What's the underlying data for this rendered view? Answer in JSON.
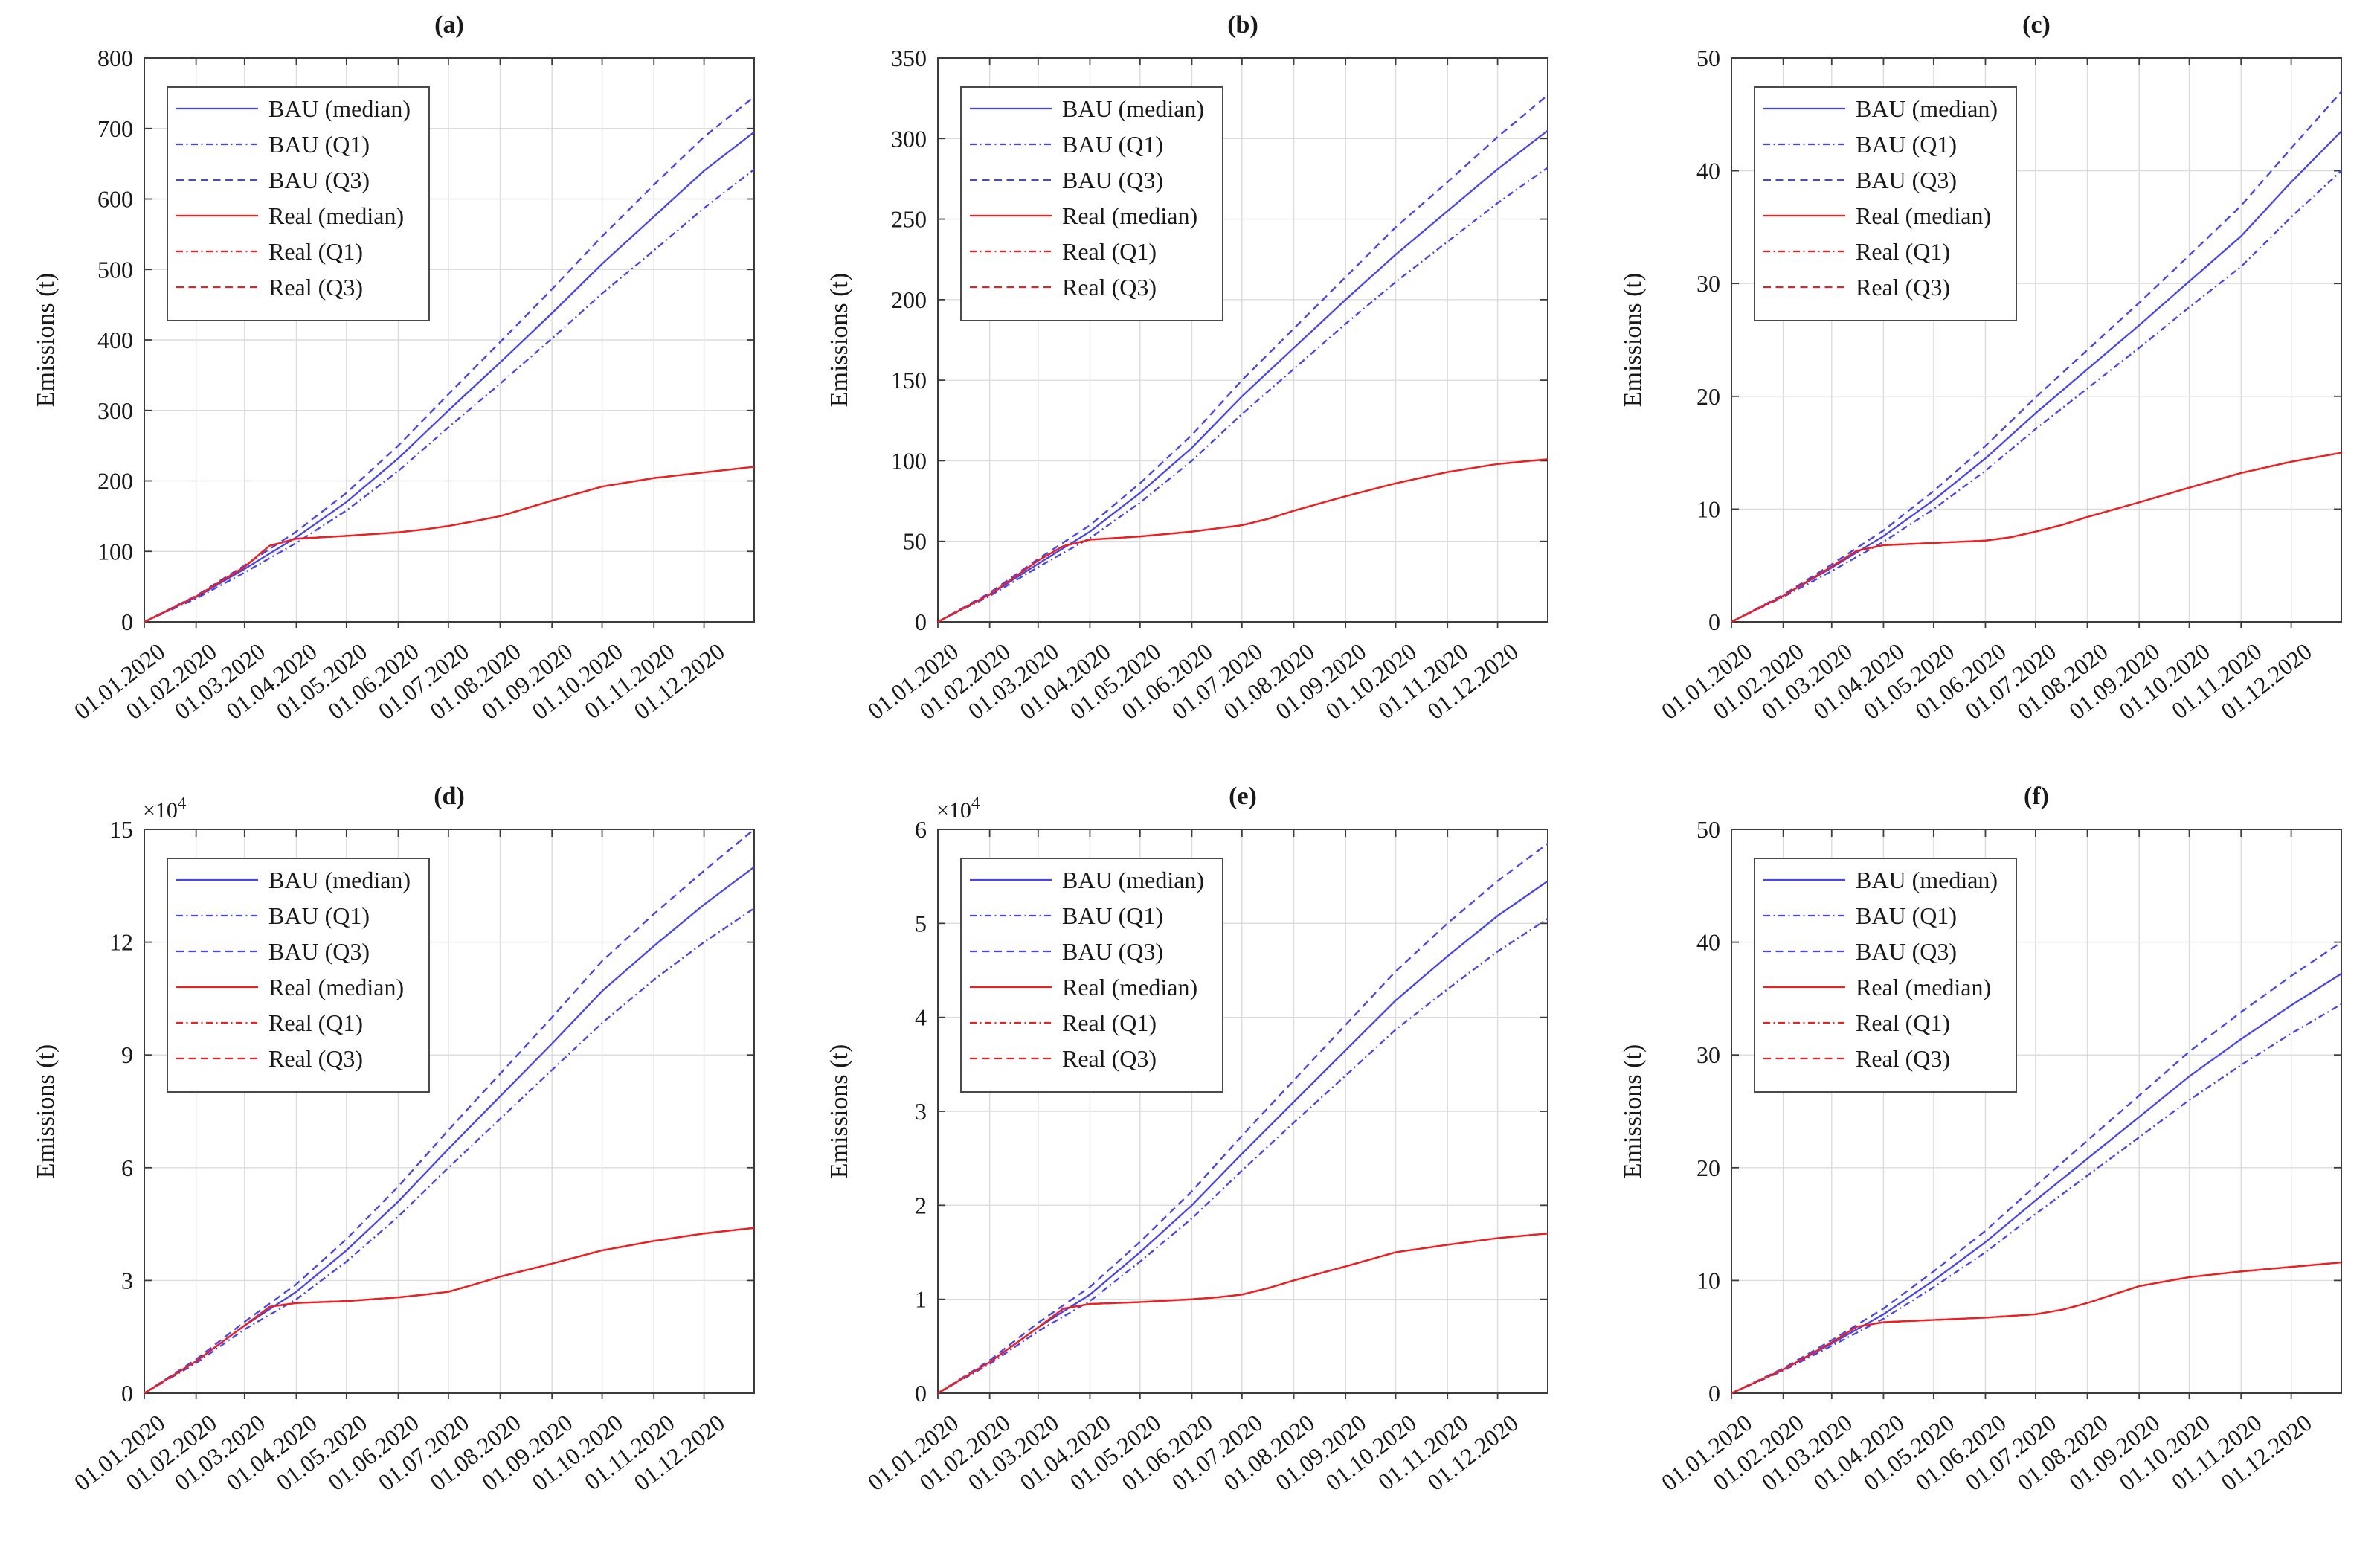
{
  "figure": {
    "background": "#ffffff"
  },
  "colors": {
    "bau": "#4545f0",
    "real": "#ed1f1f",
    "grid": "#dcdcdc",
    "axis": "#3c3c3c",
    "text": "#191919",
    "legend_border": "#4a4a4a",
    "legend_fill": "#ffffff"
  },
  "chart_data": {
    "type": "line",
    "shared": {
      "ylabel": "Emissions (t)",
      "xlabel": "",
      "grid": true,
      "legend_position": "upper-left",
      "x_tick_labels": [
        "01.01.2020",
        "01.02.2020",
        "01.03.2020",
        "01.04.2020",
        "01.05.2020",
        "01.06.2020",
        "01.07.2020",
        "01.08.2020",
        "01.09.2020",
        "01.10.2020",
        "01.11.2020",
        "01.12.2020"
      ],
      "x_tick_days": [
        0,
        31,
        60,
        91,
        121,
        152,
        182,
        213,
        244,
        274,
        305,
        335
      ],
      "xlim": [
        0,
        365
      ],
      "legend": [
        {
          "label": "BAU (median)",
          "color_key": "bau",
          "style": "solid",
          "series_key": "bau_median"
        },
        {
          "label": "BAU (Q1)",
          "color_key": "bau",
          "style": "dashdot",
          "series_key": "bau_q1"
        },
        {
          "label": "BAU (Q3)",
          "color_key": "bau",
          "style": "dashed",
          "series_key": "bau_q3"
        },
        {
          "label": "Real (median)",
          "color_key": "real",
          "style": "solid",
          "series_key": "real_median"
        },
        {
          "label": "Real (Q1)",
          "color_key": "real",
          "style": "dashdot",
          "series_key": "real_q1"
        },
        {
          "label": "Real (Q3)",
          "color_key": "real",
          "style": "dashed",
          "series_key": "real_q3"
        }
      ],
      "bau_x_days": [
        0,
        31,
        60,
        91,
        121,
        152,
        182,
        213,
        244,
        274,
        305,
        335,
        365
      ],
      "real_x_days": [
        0,
        31,
        60,
        75,
        91,
        121,
        152,
        167,
        182,
        198,
        213,
        244,
        274,
        305,
        335,
        365
      ]
    },
    "charts": [
      {
        "id": "a",
        "title": "(a)",
        "ylim": [
          0,
          800
        ],
        "yticks": [
          0,
          100,
          200,
          300,
          400,
          500,
          600,
          700,
          800
        ],
        "y_exponent": null,
        "series": {
          "bau_median": [
            0,
            35,
            75,
            120,
            170,
            232,
            300,
            368,
            438,
            508,
            575,
            640,
            695
          ],
          "bau_q1": [
            0,
            33,
            70,
            112,
            158,
            214,
            276,
            338,
            402,
            466,
            527,
            587,
            642
          ],
          "bau_q3": [
            0,
            37,
            80,
            128,
            183,
            250,
            323,
            397,
            472,
            547,
            620,
            688,
            745
          ],
          "real_median": [
            0,
            36,
            78,
            108,
            118,
            122,
            127,
            131,
            136,
            143,
            150,
            172,
            192,
            204,
            212,
            220
          ],
          "real_q1": [
            0,
            36,
            78,
            108,
            118,
            122,
            127,
            131,
            136,
            143,
            150,
            172,
            192,
            204,
            212,
            220
          ],
          "real_q3": [
            0,
            36,
            78,
            108,
            118,
            122,
            127,
            131,
            136,
            143,
            150,
            172,
            192,
            204,
            212,
            220
          ]
        }
      },
      {
        "id": "b",
        "title": "(b)",
        "ylim": [
          0,
          350
        ],
        "yticks": [
          0,
          50,
          100,
          150,
          200,
          250,
          300,
          350
        ],
        "y_exponent": null,
        "series": {
          "bau_median": [
            0,
            17,
            36,
            56,
            80,
            108,
            140,
            170,
            200,
            228,
            255,
            281,
            305
          ],
          "bau_q1": [
            0,
            16,
            34,
            52,
            74,
            100,
            129,
            157,
            185,
            211,
            236,
            260,
            282
          ],
          "bau_q3": [
            0,
            18,
            39,
            60,
            86,
            116,
            150,
            182,
            214,
            245,
            273,
            301,
            327
          ],
          "real_median": [
            0,
            17,
            38,
            47,
            51,
            53,
            56,
            58,
            60,
            64,
            69,
            78,
            86,
            93,
            98,
            101
          ],
          "real_q1": [
            0,
            17,
            38,
            47,
            51,
            53,
            56,
            58,
            60,
            64,
            69,
            78,
            86,
            93,
            98,
            101
          ],
          "real_q3": [
            0,
            17,
            38,
            47,
            51,
            53,
            56,
            58,
            60,
            64,
            69,
            78,
            86,
            93,
            98,
            101
          ]
        }
      },
      {
        "id": "c",
        "title": "(c)",
        "ylim": [
          0,
          50
        ],
        "yticks": [
          0,
          10,
          20,
          30,
          40,
          50
        ],
        "y_exponent": null,
        "series": {
          "bau_median": [
            0,
            2.3,
            4.8,
            7.6,
            10.8,
            14.5,
            18.5,
            22.4,
            26.3,
            30.2,
            34.2,
            39.0,
            43.5
          ],
          "bau_q1": [
            0,
            2.2,
            4.5,
            7.1,
            10.0,
            13.4,
            17.1,
            20.7,
            24.3,
            27.9,
            31.5,
            35.9,
            40.0
          ],
          "bau_q3": [
            0,
            2.4,
            5.1,
            8.1,
            11.6,
            15.6,
            19.9,
            24.1,
            28.3,
            32.5,
            36.9,
            42.0,
            47.0
          ],
          "real_median": [
            0,
            2.3,
            4.9,
            6.3,
            6.8,
            7.0,
            7.2,
            7.5,
            8.0,
            8.6,
            9.3,
            10.6,
            11.9,
            13.2,
            14.2,
            15.0
          ],
          "real_q1": [
            0,
            2.3,
            4.9,
            6.3,
            6.8,
            7.0,
            7.2,
            7.5,
            8.0,
            8.6,
            9.3,
            10.6,
            11.9,
            13.2,
            14.2,
            15.0
          ],
          "real_q3": [
            0,
            2.3,
            4.9,
            6.3,
            6.8,
            7.0,
            7.2,
            7.5,
            8.0,
            8.6,
            9.3,
            10.6,
            11.9,
            13.2,
            14.2,
            15.0
          ]
        }
      },
      {
        "id": "d",
        "title": "(d)",
        "ylim": [
          0,
          15
        ],
        "yticks": [
          0,
          3,
          6,
          9,
          12,
          15
        ],
        "y_exponent": {
          "mantissa": "×10",
          "power": "4"
        },
        "series": {
          "bau_median": [
            0,
            0.85,
            1.8,
            2.7,
            3.8,
            5.1,
            6.5,
            7.9,
            9.3,
            10.7,
            11.9,
            13.0,
            14.0
          ],
          "bau_q1": [
            0,
            0.8,
            1.7,
            2.5,
            3.5,
            4.7,
            6.0,
            7.3,
            8.6,
            9.85,
            11.0,
            12.0,
            12.9
          ],
          "bau_q3": [
            0,
            0.9,
            1.9,
            2.9,
            4.1,
            5.5,
            7.0,
            8.5,
            10.0,
            11.5,
            12.75,
            13.9,
            15.0
          ],
          "real_median": [
            0,
            0.85,
            1.8,
            2.3,
            2.4,
            2.45,
            2.55,
            2.62,
            2.7,
            2.9,
            3.1,
            3.45,
            3.8,
            4.05,
            4.25,
            4.4
          ],
          "real_q1": [
            0,
            0.85,
            1.8,
            2.3,
            2.4,
            2.45,
            2.55,
            2.62,
            2.7,
            2.9,
            3.1,
            3.45,
            3.8,
            4.05,
            4.25,
            4.4
          ],
          "real_q3": [
            0,
            0.85,
            1.8,
            2.3,
            2.4,
            2.45,
            2.55,
            2.62,
            2.7,
            2.9,
            3.1,
            3.45,
            3.8,
            4.05,
            4.25,
            4.4
          ]
        }
      },
      {
        "id": "e",
        "title": "(e)",
        "ylim": [
          0,
          6
        ],
        "yticks": [
          0,
          1,
          2,
          3,
          4,
          5,
          6
        ],
        "y_exponent": {
          "mantissa": "×10",
          "power": "4"
        },
        "series": {
          "bau_median": [
            0,
            0.33,
            0.7,
            1.05,
            1.5,
            2.0,
            2.55,
            3.1,
            3.65,
            4.18,
            4.65,
            5.08,
            5.45
          ],
          "bau_q1": [
            0,
            0.31,
            0.66,
            0.98,
            1.4,
            1.86,
            2.37,
            2.88,
            3.38,
            3.87,
            4.3,
            4.7,
            5.05
          ],
          "bau_q3": [
            0,
            0.35,
            0.75,
            1.13,
            1.61,
            2.15,
            2.74,
            3.33,
            3.92,
            4.49,
            5.0,
            5.45,
            5.85
          ],
          "real_median": [
            0,
            0.33,
            0.7,
            0.9,
            0.95,
            0.97,
            1.0,
            1.02,
            1.05,
            1.12,
            1.2,
            1.35,
            1.5,
            1.58,
            1.65,
            1.7
          ],
          "real_q1": [
            0,
            0.33,
            0.7,
            0.9,
            0.95,
            0.97,
            1.0,
            1.02,
            1.05,
            1.12,
            1.2,
            1.35,
            1.5,
            1.58,
            1.65,
            1.7
          ],
          "real_q3": [
            0,
            0.33,
            0.7,
            0.9,
            0.95,
            0.97,
            1.0,
            1.02,
            1.05,
            1.12,
            1.2,
            1.35,
            1.5,
            1.58,
            1.65,
            1.7
          ]
        }
      },
      {
        "id": "f",
        "title": "(f)",
        "ylim": [
          0,
          50
        ],
        "yticks": [
          0,
          10,
          20,
          30,
          40,
          50
        ],
        "y_exponent": null,
        "series": {
          "bau_median": [
            0,
            2.1,
            4.4,
            7.0,
            10.0,
            13.4,
            17.1,
            20.8,
            24.5,
            28.1,
            31.4,
            34.4,
            37.2
          ],
          "bau_q1": [
            0,
            2.0,
            4.2,
            6.6,
            9.4,
            12.5,
            15.9,
            19.3,
            22.7,
            26.0,
            29.1,
            31.9,
            34.5
          ],
          "bau_q3": [
            0,
            2.2,
            4.7,
            7.5,
            10.8,
            14.4,
            18.4,
            22.4,
            26.4,
            30.3,
            33.8,
            37.0,
            40.0
          ],
          "real_median": [
            0,
            2.1,
            4.5,
            5.9,
            6.3,
            6.5,
            6.7,
            6.85,
            7.0,
            7.4,
            8.0,
            9.5,
            10.3,
            10.8,
            11.2,
            11.6
          ],
          "real_q1": [
            0,
            2.1,
            4.5,
            5.9,
            6.3,
            6.5,
            6.7,
            6.85,
            7.0,
            7.4,
            8.0,
            9.5,
            10.3,
            10.8,
            11.2,
            11.6
          ],
          "real_q3": [
            0,
            2.1,
            4.5,
            5.9,
            6.3,
            6.5,
            6.7,
            6.85,
            7.0,
            7.4,
            8.0,
            9.5,
            10.3,
            10.8,
            11.2,
            11.6
          ]
        }
      }
    ]
  }
}
